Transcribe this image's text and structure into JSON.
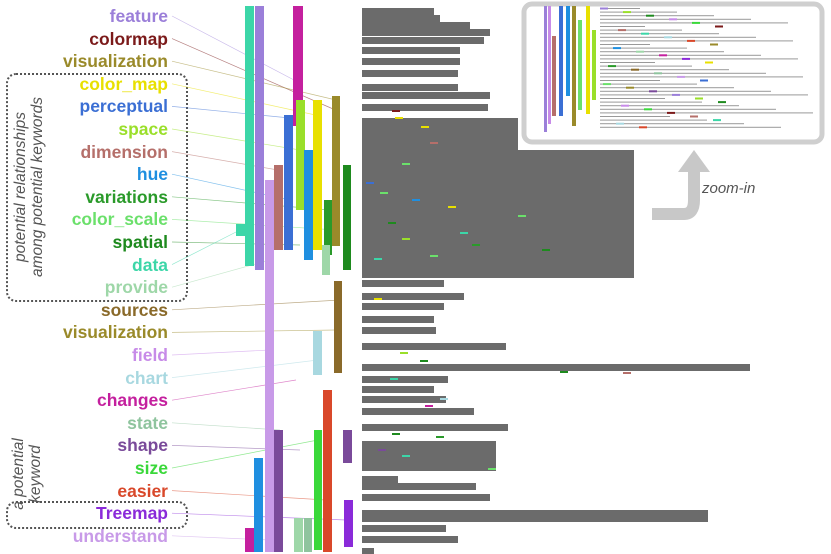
{
  "keywords": [
    {
      "text": "feature",
      "color": "#9b7fd9"
    },
    {
      "text": "colormap",
      "color": "#7b1a1a"
    },
    {
      "text": "visualization",
      "color": "#9a8a2a"
    },
    {
      "text": "color_map",
      "color": "#e8e000"
    },
    {
      "text": "perceptual",
      "color": "#3b6fd4"
    },
    {
      "text": "space",
      "color": "#9adf2a"
    },
    {
      "text": "dimension",
      "color": "#b56f6a"
    },
    {
      "text": "hue",
      "color": "#1f8fe0"
    },
    {
      "text": "variations",
      "color": "#2a9a2a"
    },
    {
      "text": "color_scale",
      "color": "#6be06b"
    },
    {
      "text": "spatial",
      "color": "#1e8a1e"
    },
    {
      "text": "data",
      "color": "#3cd6a8"
    },
    {
      "text": "provide",
      "color": "#9ed7a8"
    },
    {
      "text": "sources",
      "color": "#8a6a2a"
    },
    {
      "text": "visualization",
      "color": "#9a8a2a"
    },
    {
      "text": "field",
      "color": "#c78be8"
    },
    {
      "text": "chart",
      "color": "#a8d8e0"
    },
    {
      "text": "changes",
      "color": "#c4209e"
    },
    {
      "text": "state",
      "color": "#8fc49e"
    },
    {
      "text": "shape",
      "color": "#7a4a9a"
    },
    {
      "text": "size",
      "color": "#3ad83a"
    },
    {
      "text": "easier",
      "color": "#d9482a"
    },
    {
      "text": "Treemap",
      "color": "#8a2ad9"
    },
    {
      "text": "understand",
      "color": "#c89ae8"
    }
  ],
  "annotations": {
    "top_group": "potential relationships\namong potential keywords",
    "bottom_group": "a potential\nkeyword",
    "zoom": "zoom-in"
  },
  "colors": {
    "doc_bar": "#6b6b6b",
    "connector": "#c8c8c8",
    "inset_border": "#cfcfcf",
    "arrow": "#c8c8c8"
  }
}
